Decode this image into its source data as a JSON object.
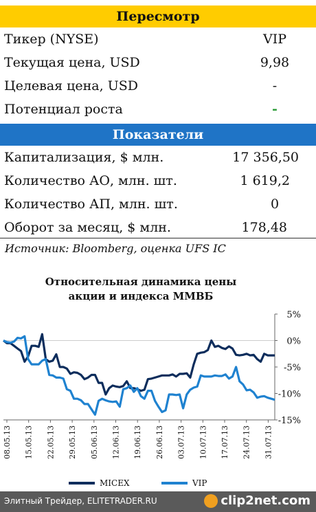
{
  "review": {
    "header": "Пересмотр",
    "rows": [
      {
        "label": "Тикер (NYSE)",
        "value": "VIP"
      },
      {
        "label": "Текущая цена, USD",
        "value": "9,98"
      },
      {
        "label": "Целевая цена, USD",
        "value": "-"
      },
      {
        "label": "Потенциал роста",
        "value": "-"
      }
    ]
  },
  "indicators": {
    "header": "Показатели",
    "rows": [
      {
        "label": "Капитализация, $ млн.",
        "value": "17 356,50"
      },
      {
        "label": "Количество АО, млн. шт.",
        "value": "1 619,2"
      },
      {
        "label": "Количество АП, млн. шт.",
        "value": "0"
      },
      {
        "label": "Оборот за месяц, $ млн.",
        "value": "178,48"
      }
    ]
  },
  "source": "Источник: Bloomberg, оценка UFS IC",
  "colors": {
    "micex": "#0d2d5c",
    "vip": "#1f82d0",
    "yellow": "#ffcc00",
    "blue": "#1f74c6"
  },
  "chart_data": {
    "type": "line",
    "title_line1": "Относительная динамика цены",
    "title_line2": "акции и индекса ММВБ",
    "ylim": [
      -15,
      5
    ],
    "yticks": [
      "5%",
      "0%",
      "-5%",
      "-10%",
      "-15%"
    ],
    "ytick_values": [
      5,
      0,
      -5,
      -10,
      -15
    ],
    "x_labels": [
      "08.05.13",
      "15.05.13",
      "22.05.13",
      "29.05.13",
      "05.06.13",
      "12.06.13",
      "19.06.13",
      "26.06.13",
      "03.07.13",
      "10.07.13",
      "17.07.13",
      "24.07.13",
      "31.07.13"
    ],
    "grid": false,
    "legend_position": "bottom",
    "series": [
      {
        "name": "MICEX",
        "color": "#0d2d5c",
        "values": [
          0,
          -0.5,
          -0.5,
          -1,
          -1.5,
          -2,
          -4,
          -3,
          -1,
          -1,
          -1.2,
          1.2,
          -3.5,
          -4,
          -3.8,
          -2.6,
          -5,
          -5,
          -5.3,
          -6.3,
          -6,
          -6.1,
          -6.5,
          -7.3,
          -7,
          -6.5,
          -6.5,
          -8,
          -8,
          -10.2,
          -9,
          -8.5,
          -8.7,
          -8.8,
          -8.6,
          -7.7,
          -9,
          -9,
          -9.2,
          -9.5,
          -9.3,
          -7.3,
          -7.2,
          -7,
          -6.8,
          -6.6,
          -6.6,
          -6.6,
          -6.4,
          -6.8,
          -6.3,
          -6.3,
          -6.2,
          -7,
          -4.5,
          -2.5,
          -2.3,
          -2.2,
          -1.8,
          0,
          -1.2,
          -1,
          -1.4,
          -1.6,
          -1.1,
          -1.5,
          -2.7,
          -2.8,
          -2.7,
          -2.5,
          -2.8,
          -2.7,
          -3.5,
          -4,
          -2.5,
          -2.8,
          -2.8,
          -2.8
        ]
      },
      {
        "name": "VIP",
        "color": "#1f82d0",
        "values": [
          0,
          -0.3,
          -0.4,
          -0.2,
          0.5,
          0.4,
          0.8,
          -3.5,
          -4.5,
          -4.5,
          -4.5,
          -3.8,
          -3.5,
          -6.5,
          -6.6,
          -7,
          -7,
          -7.2,
          -9.2,
          -9.5,
          -11,
          -11,
          -11.3,
          -12,
          -12,
          -13,
          -14,
          -11.4,
          -11,
          -11.3,
          -11.5,
          -11.6,
          -11.5,
          -12.5,
          -9.2,
          -9,
          -8.5,
          -9.7,
          -9,
          -10.5,
          -11,
          -9.5,
          -9.5,
          -11.4,
          -12.5,
          -13.5,
          -13.2,
          -10.2,
          -10.2,
          -10.3,
          -10.2,
          -12.8,
          -10.2,
          -9.3,
          -8.9,
          -8.7,
          -6.6,
          -6.8,
          -6.8,
          -6.8,
          -6.6,
          -6.7,
          -6.7,
          -6.4,
          -7.2,
          -6.8,
          -5,
          -7.7,
          -8.3,
          -9.4,
          -9.3,
          -9.8,
          -10.8,
          -10.6,
          -10.5,
          -10.8,
          -11,
          -11.2
        ]
      }
    ]
  },
  "footer": {
    "text": "Элитный Трейдер, ELITETRADER.RU",
    "logo": "clip2net.com"
  }
}
